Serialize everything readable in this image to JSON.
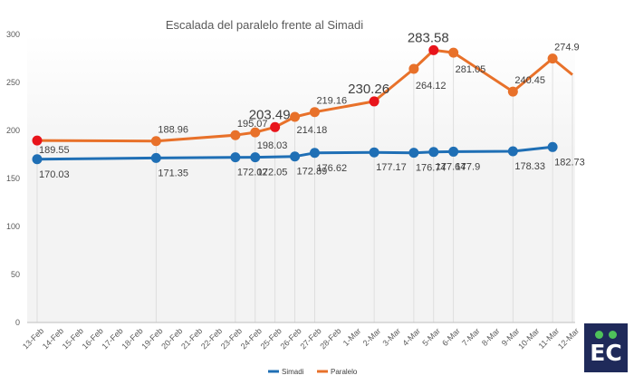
{
  "chart_data": {
    "type": "line",
    "title": "Escalada del paralelo frente al Simadi",
    "xlabel": "",
    "ylabel": "",
    "ylim": [
      0,
      300
    ],
    "yticks": [
      0,
      50,
      100,
      150,
      200,
      250,
      300
    ],
    "grid": false,
    "legend_position": "bottom",
    "categories": [
      "13-Feb",
      "14-Feb",
      "15-Feb",
      "16-Feb",
      "17-Feb",
      "18-Feb",
      "19-Feb",
      "20-Feb",
      "21-Feb",
      "22-Feb",
      "23-Feb",
      "24-Feb",
      "25-Feb",
      "26-Feb",
      "27-Feb",
      "28-Feb",
      "1-Mar",
      "2-Mar",
      "3-Mar",
      "4-Mar",
      "5-Mar",
      "6-Mar",
      "7-Mar",
      "8-Mar",
      "9-Mar",
      "10-Mar",
      "11-Mar",
      "12-Mar"
    ],
    "series": [
      {
        "name": "Simadi",
        "color": "#1f6fb5",
        "points": [
          {
            "category": "13-Feb",
            "value": 170.03,
            "label": "170.03"
          },
          {
            "category": "19-Feb",
            "value": 171.35,
            "label": "171.35"
          },
          {
            "category": "23-Feb",
            "value": 172.02,
            "label": "172.02"
          },
          {
            "category": "24-Feb",
            "value": 172.05,
            "label": "172.05"
          },
          {
            "category": "26-Feb",
            "value": 172.89,
            "label": "172.89"
          },
          {
            "category": "27-Feb",
            "value": 176.62,
            "label": "176.62"
          },
          {
            "category": "2-Mar",
            "value": 177.17,
            "label": "177.17"
          },
          {
            "category": "4-Mar",
            "value": 176.74,
            "label": "176.74"
          },
          {
            "category": "5-Mar",
            "value": 177.64,
            "label": "177.64"
          },
          {
            "category": "6-Mar",
            "value": 177.9,
            "label": "177.9"
          },
          {
            "category": "9-Mar",
            "value": 178.33,
            "label": "178.33"
          },
          {
            "category": "11-Mar",
            "value": 182.73,
            "label": "182.73"
          }
        ]
      },
      {
        "name": "Paralelo",
        "color": "#e8712a",
        "highlight_color": "#e8141b",
        "points": [
          {
            "category": "13-Feb",
            "value": 189.55,
            "label": "189.55",
            "highlight": true
          },
          {
            "category": "19-Feb",
            "value": 188.96,
            "label": "188.96"
          },
          {
            "category": "23-Feb",
            "value": 195.07,
            "label": "195.07"
          },
          {
            "category": "24-Feb",
            "value": 198.03,
            "label": "198.03"
          },
          {
            "category": "25-Feb",
            "value": 203.49,
            "label": "203.49",
            "highlight": true,
            "big": true
          },
          {
            "category": "26-Feb",
            "value": 214.18,
            "label": "214.18"
          },
          {
            "category": "27-Feb",
            "value": 219.16,
            "label": "219.16"
          },
          {
            "category": "2-Mar",
            "value": 230.26,
            "label": "230.26",
            "highlight": true,
            "big": true
          },
          {
            "category": "4-Mar",
            "value": 264.12,
            "label": "264.12"
          },
          {
            "category": "5-Mar",
            "value": 283.58,
            "label": "283.58",
            "highlight": true,
            "big": true
          },
          {
            "category": "6-Mar",
            "value": 281.05,
            "label": "281.05"
          },
          {
            "category": "9-Mar",
            "value": 240.45,
            "label": "240.45"
          },
          {
            "category": "11-Mar",
            "value": 274.9,
            "label": "274.9"
          },
          {
            "category": "12-Mar",
            "value": 258,
            "label": ""
          }
        ]
      }
    ]
  },
  "logo": {
    "text": "EC",
    "dot_color": "#4ec25a",
    "background": "#1f2a5a"
  }
}
